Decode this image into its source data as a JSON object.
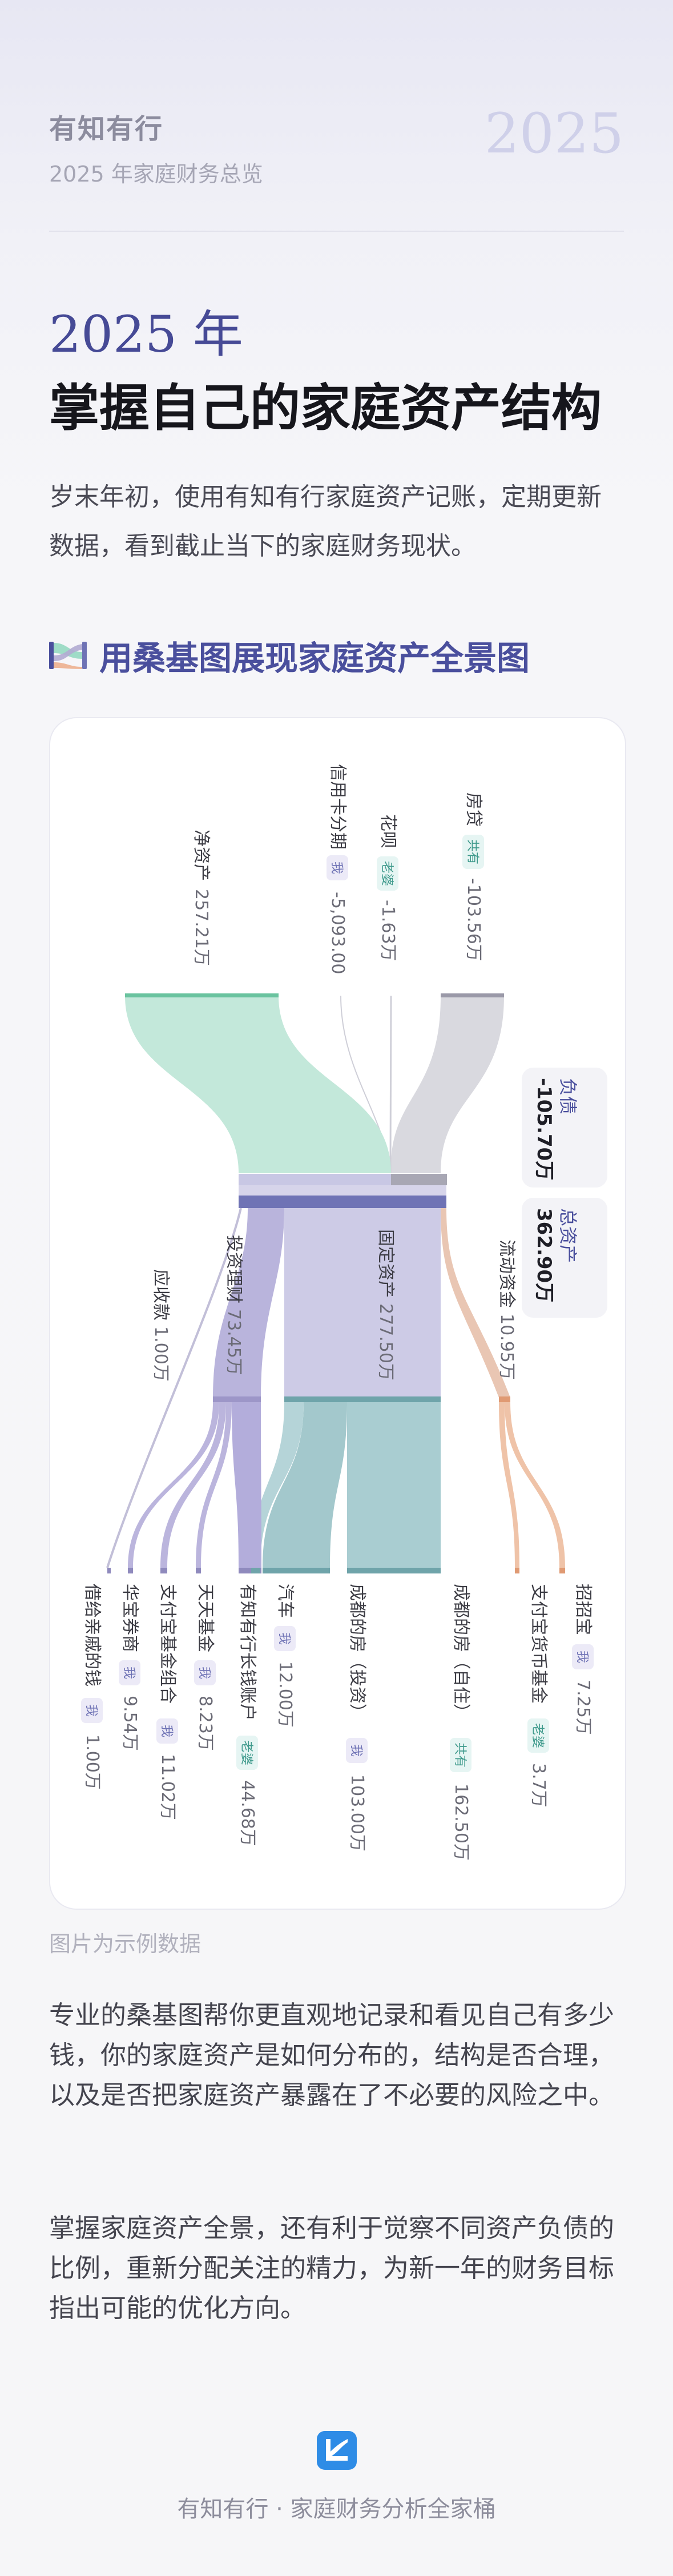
{
  "header": {
    "brand": "有知有行",
    "subtitle": "2025 年家庭财务总览",
    "year_badge": "2025"
  },
  "hero": {
    "year_title": "2025 年",
    "main_title": "掌握自己的家庭资产结构",
    "intro": "岁末年初，使用有知有行家庭资产记账，定期更新数据，看到截止当下的家庭财务现状。"
  },
  "section": {
    "icon": "sankey-icon",
    "title": "用桑基图展现家庭资产全景图"
  },
  "sankey": {
    "colors": {
      "net_assets": "#9fdcc7",
      "liabilities": "#c8c8d0",
      "invest": "#b1abd2",
      "fixed": "#c7c6e2",
      "house": "#95c2c6",
      "cash": "#eeb799",
      "receivable": "#ccc9dc",
      "accent": "#4a4f9d"
    },
    "top_labels": [
      {
        "name": "净资产",
        "value": "257.21万",
        "tag": ""
      },
      {
        "name": "信用卡分期",
        "value": "-5,093.00",
        "tag": "我"
      },
      {
        "name": "花呗",
        "value": "-1.63万",
        "tag": "老婆"
      },
      {
        "name": "房贷",
        "value": "-103.56万",
        "tag": "共有"
      }
    ],
    "summary": [
      {
        "name": "负债",
        "value": "-105.70万"
      },
      {
        "name": "总资产",
        "value": "362.90万"
      }
    ],
    "middle_labels": [
      {
        "name": "应收款",
        "value": "1.00万"
      },
      {
        "name": "投资理财",
        "value": "73.45万"
      },
      {
        "name": "固定资产",
        "value": "277.50万"
      },
      {
        "name": "流动资金",
        "value": "10.95万"
      }
    ],
    "bottom_labels": [
      {
        "name": "借给亲戚的钱",
        "tag": "我",
        "value": "1.00万"
      },
      {
        "name": "华宝券商",
        "tag": "我",
        "value": "9.54万"
      },
      {
        "name": "支付宝基金组合",
        "tag": "我",
        "value": "11.02万"
      },
      {
        "name": "天天基金",
        "tag": "我",
        "value": "8.23万"
      },
      {
        "name": "有知有行长钱账户",
        "tag": "老婆",
        "value": "44.68万"
      },
      {
        "name": "汽车",
        "tag": "我",
        "value": "12.00万"
      },
      {
        "name": "成都的房（投资）",
        "tag": "我",
        "value": "103.00万"
      },
      {
        "name": "成都的房（自住）",
        "tag": "共有",
        "value": "162.50万"
      },
      {
        "name": "支付宝货币基金",
        "tag": "老婆",
        "value": "3.7万"
      },
      {
        "name": "招招宝",
        "tag": "我",
        "value": "7.25万"
      }
    ]
  },
  "caption": "图片为示例数据",
  "paragraphs": [
    "专业的桑基图帮你更直观地记录和看见自己有多少钱，你的家庭资产是如何分布的，结构是否合理，以及是否把家庭资产暴露在了不必要的风险之中。",
    "掌握家庭资产全景，还有利于觉察不同资产负债的比例，重新分配关注的精力，为新一年的财务目标指出可能的优化方向。"
  ],
  "footer": {
    "logo_icon": "app-logo-icon",
    "text": "有知有行 · 家庭财务分析全家桶"
  }
}
